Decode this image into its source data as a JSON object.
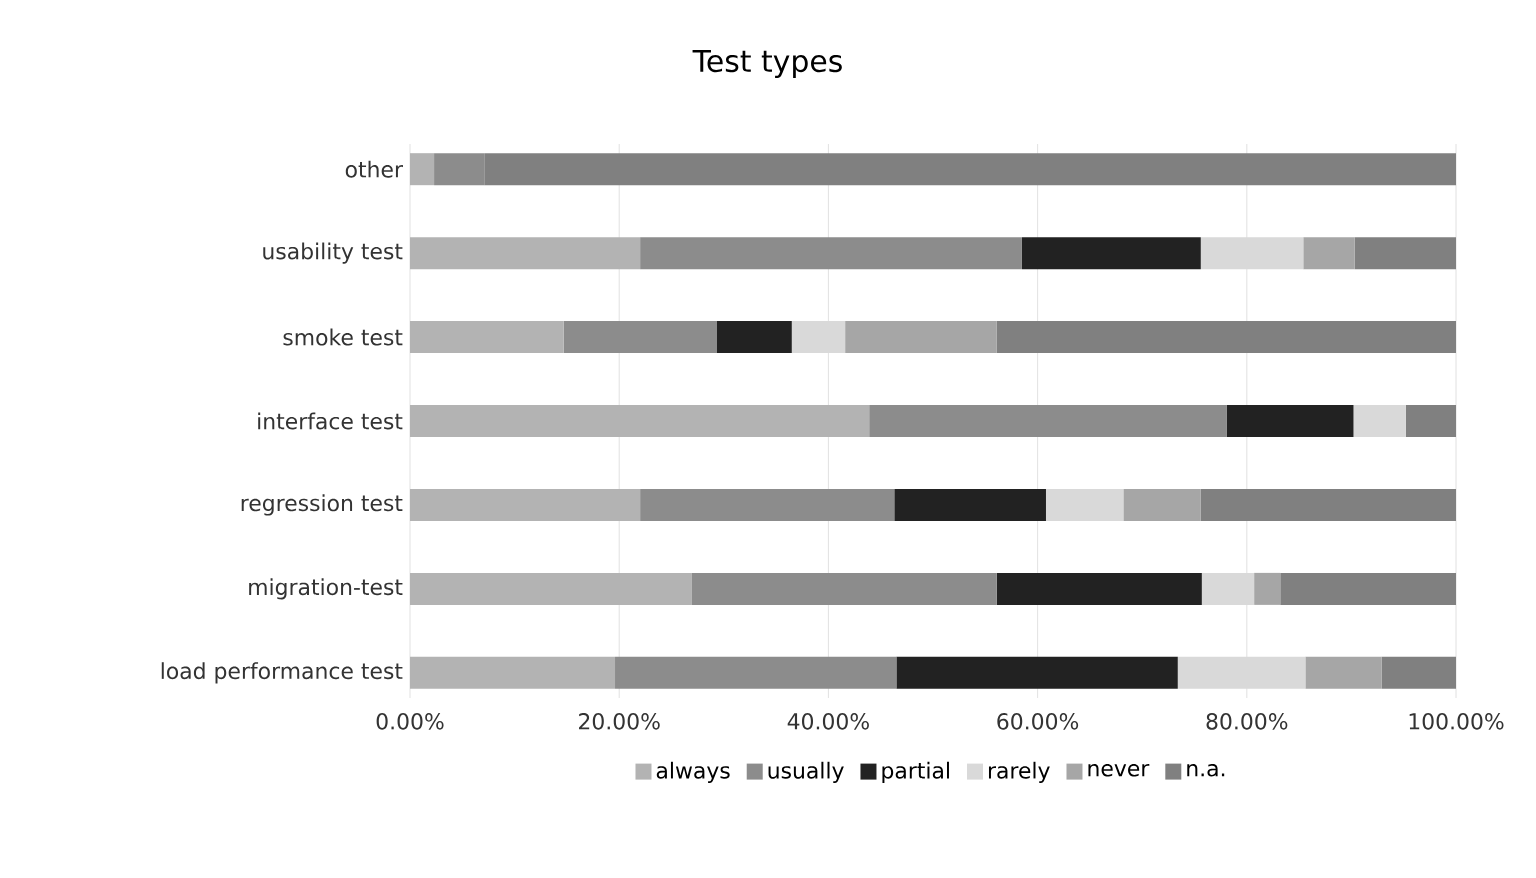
{
  "chart_data": {
    "type": "bar",
    "title": "Test types",
    "orientation": "horizontal",
    "stacked": true,
    "categories": [
      "other",
      "usability test",
      "smoke test",
      "interface test",
      "regression test",
      "migration-test",
      "load performance test"
    ],
    "series": [
      {
        "name": "always",
        "color": "#b3b3b3",
        "values": [
          2.3,
          22.0,
          14.7,
          43.9,
          22.0,
          26.9,
          19.6
        ]
      },
      {
        "name": "usually",
        "color": "#8c8c8c",
        "values": [
          4.8,
          36.5,
          14.6,
          34.2,
          24.3,
          29.2,
          26.9
        ]
      },
      {
        "name": "partial",
        "color": "#222222",
        "values": [
          0,
          17.1,
          7.2,
          12.1,
          14.5,
          19.6,
          26.9
        ]
      },
      {
        "name": "rarely",
        "color": "#d9d9d9",
        "values": [
          0,
          9.8,
          5.1,
          5.0,
          7.4,
          5.0,
          12.2
        ]
      },
      {
        "name": "never",
        "color": "#a6a6a6",
        "values": [
          0,
          4.9,
          14.5,
          0,
          7.4,
          2.5,
          7.3
        ]
      },
      {
        "name": "n.a.",
        "color": "#808080",
        "values": [
          92.9,
          9.7,
          43.9,
          4.8,
          24.4,
          16.8,
          7.1
        ]
      }
    ],
    "xlim": [
      0,
      100
    ],
    "xticks": [
      {
        "value": 0,
        "label": "0.00%"
      },
      {
        "value": 20,
        "label": "20.00%"
      },
      {
        "value": 40,
        "label": "40.00%"
      },
      {
        "value": 60,
        "label": "60.00%"
      },
      {
        "value": 80,
        "label": "80.00%"
      },
      {
        "value": 100,
        "label": "100.00%"
      }
    ],
    "grid": "x",
    "legend": "bottom"
  }
}
